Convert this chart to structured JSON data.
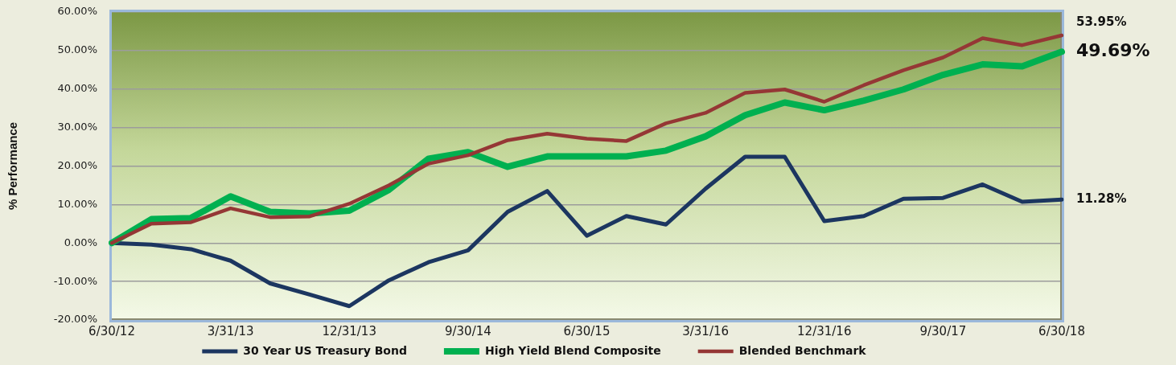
{
  "chart_data": {
    "type": "line",
    "ylabel": "% Performance",
    "categories": [
      "6/30/12",
      null,
      null,
      "3/31/13",
      null,
      null,
      "12/31/13",
      null,
      null,
      "9/30/14",
      null,
      null,
      "6/30/15",
      null,
      null,
      "3/31/16",
      null,
      null,
      "12/31/16",
      null,
      null,
      "9/30/17",
      null,
      null,
      "6/30/18"
    ],
    "ylim": [
      -20,
      60
    ],
    "yticks": [
      {
        "value": -20,
        "label": "-20.00%"
      },
      {
        "value": -10,
        "label": "-10.00%"
      },
      {
        "value": 0,
        "label": "0.00%"
      },
      {
        "value": 10,
        "label": "10.00%"
      },
      {
        "value": 20,
        "label": "20.00%"
      },
      {
        "value": 30,
        "label": "30.00%"
      },
      {
        "value": 40,
        "label": "40.00%"
      },
      {
        "value": 50,
        "label": "50.00%"
      },
      {
        "value": 60,
        "label": "60.00%"
      }
    ],
    "grid": "y",
    "legend": "bottom",
    "marker": "none",
    "line_style": "solid",
    "series": [
      {
        "name": "30 Year US Treasury Bond",
        "color": "#1c3660",
        "values": [
          0,
          -0.4,
          -1.6,
          -4.6,
          -10.5,
          -13.4,
          -16.4,
          -9.7,
          -5.0,
          -1.9,
          8.1,
          13.5,
          1.9,
          7.0,
          4.8,
          14.1,
          22.4,
          22.4,
          5.7,
          7.0,
          11.5,
          11.7,
          15.2,
          10.7,
          11.28
        ],
        "value_labels": [
          null,
          null,
          null,
          null,
          null,
          null,
          null,
          null,
          null,
          null,
          null,
          null,
          null,
          null,
          null,
          null,
          null,
          null,
          null,
          null,
          null,
          null,
          null,
          null,
          "11.28%"
        ]
      },
      {
        "name": "High Yield Blend Composite",
        "color": "#00b050",
        "values": [
          0,
          6.2,
          6.5,
          12.1,
          8.1,
          7.7,
          8.4,
          13.8,
          21.9,
          23.6,
          19.8,
          22.5,
          22.5,
          22.5,
          24.0,
          27.7,
          33.2,
          36.5,
          34.5,
          37.0,
          39.9,
          43.7,
          46.4,
          45.9,
          49.69
        ],
        "value_labels": [
          null,
          null,
          null,
          null,
          null,
          null,
          null,
          null,
          null,
          null,
          null,
          null,
          null,
          null,
          null,
          null,
          null,
          null,
          null,
          null,
          null,
          null,
          null,
          null,
          "49.69%"
        ]
      },
      {
        "name": "Blended Benchmark",
        "color": "#953735",
        "values": [
          0,
          5.0,
          5.4,
          9.0,
          6.7,
          6.9,
          10.2,
          15.0,
          20.6,
          22.8,
          26.7,
          28.4,
          27.1,
          26.5,
          31.1,
          33.8,
          39.0,
          39.9,
          36.7,
          41.0,
          44.9,
          48.2,
          53.2,
          51.4,
          53.95
        ],
        "value_labels": [
          null,
          null,
          null,
          null,
          null,
          null,
          null,
          null,
          null,
          null,
          null,
          null,
          null,
          null,
          null,
          null,
          null,
          null,
          null,
          null,
          null,
          null,
          null,
          null,
          "53.95%"
        ]
      }
    ]
  }
}
